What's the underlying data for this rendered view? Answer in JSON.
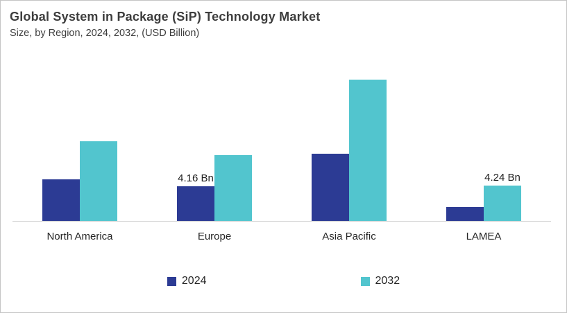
{
  "header": {
    "title": "Global System in Package (SiP) Technology Market",
    "subtitle": "Size, by Region, 2024, 2032, (USD Billion)"
  },
  "colors": {
    "series_2024": "#2C3B94",
    "series_2032": "#52C5CE",
    "axis_line": "#CFCFCF",
    "card_border": "#C4C4C4",
    "title_text": "#3D3D3D",
    "label_text": "#262626"
  },
  "legend": {
    "items": [
      {
        "label": "2024",
        "color": "#2C3B94"
      },
      {
        "label": "2032",
        "color": "#52C5CE"
      }
    ]
  },
  "chart_data": {
    "type": "bar",
    "title": "Global System in Package (SiP) Technology Market",
    "subtitle": "Size, by Region, 2024, 2032, (USD Billion)",
    "unit": "USD Billion",
    "categories": [
      "North America",
      "Europe",
      "Asia Pacific",
      "LAMEA"
    ],
    "series": [
      {
        "name": "2024",
        "color": "#2C3B94",
        "values": [
          5.0,
          4.16,
          8.1,
          1.7
        ],
        "data_labels": [
          "",
          "4.16 Bn",
          "",
          ""
        ]
      },
      {
        "name": "2032",
        "color": "#52C5CE",
        "values": [
          9.6,
          7.9,
          17.0,
          4.24
        ],
        "data_labels": [
          "",
          "",
          "",
          "4.24 Bn"
        ]
      }
    ],
    "ylim": [
      0,
      19
    ],
    "grid": false,
    "y_axis_visible": false,
    "x_axis_visible": true,
    "legend_position": "bottom",
    "annotations": [
      "4.16 Bn",
      "4.24 Bn"
    ]
  }
}
